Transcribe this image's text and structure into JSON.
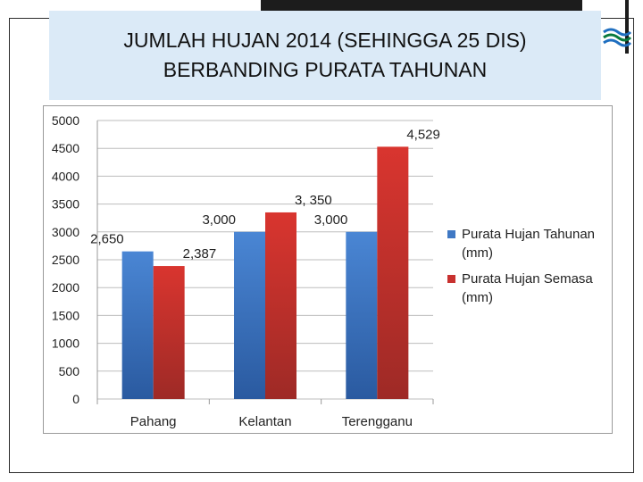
{
  "title": {
    "line1": "JUMLAH HUJAN 2014 (SEHINGGA  25 DIS)",
    "line2": "BERBANDING PURATA TAHUNAN"
  },
  "logo": {
    "icon": "waves-logo-icon",
    "colors": [
      "#0a7a3e",
      "#1f6fc0"
    ]
  },
  "chart_data": {
    "type": "bar",
    "categories": [
      "Pahang",
      "Kelantan",
      "Terengganu"
    ],
    "series": [
      {
        "name": "Purata Hujan Tahunan (mm)",
        "values": [
          2650,
          3000,
          3000
        ],
        "labels": [
          "2,650",
          "3,000",
          "3,000"
        ],
        "color": "#3f78c4"
      },
      {
        "name": "Purata Hujan Semasa (mm)",
        "values": [
          2387,
          3350,
          4529
        ],
        "labels": [
          "2,387",
          "3, 350",
          "4,529"
        ],
        "color": "#c8312f"
      }
    ],
    "ylim": [
      0,
      5000
    ],
    "yticks": [
      0,
      500,
      1000,
      1500,
      2000,
      2500,
      3000,
      3500,
      4000,
      4500,
      5000
    ],
    "grid": true,
    "legend": "right",
    "xlabel": "",
    "ylabel": ""
  }
}
